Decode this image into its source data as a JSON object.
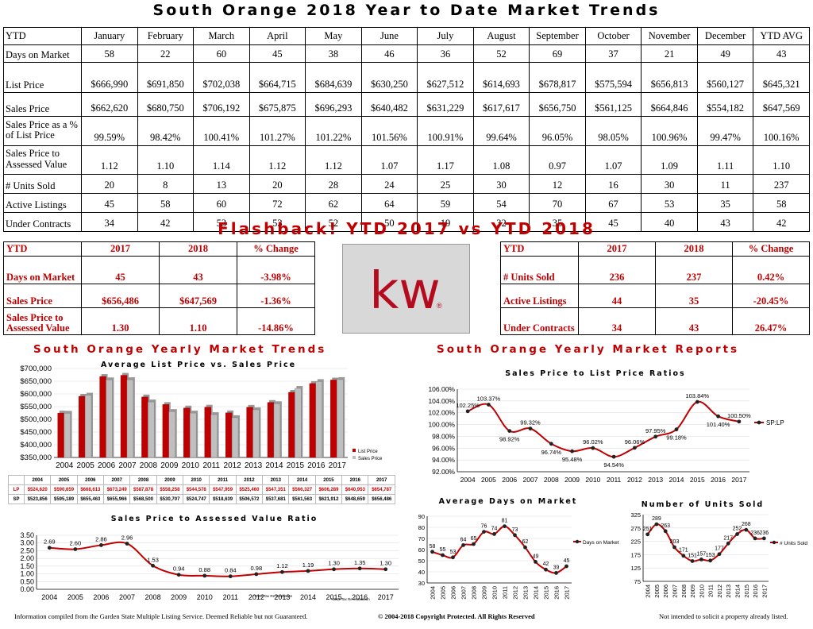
{
  "title": "South Orange 2018 Year to Date Market Trends",
  "main_table": {
    "headers": [
      "YTD",
      "January",
      "February",
      "March",
      "April",
      "May",
      "June",
      "July",
      "August",
      "September",
      "October",
      "November",
      "December",
      "YTD AVG"
    ],
    "rows": [
      {
        "label": "Days on Market",
        "values": [
          "58",
          "22",
          "60",
          "45",
          "38",
          "46",
          "36",
          "52",
          "69",
          "37",
          "21",
          "49",
          "43"
        ]
      },
      {
        "label": "List Price",
        "values": [
          "$666,990",
          "$691,850",
          "$702,038",
          "$664,715",
          "$684,639",
          "$630,250",
          "$627,512",
          "$614,693",
          "$678,817",
          "$575,594",
          "$656,813",
          "$560,127",
          "$645,321"
        ]
      },
      {
        "label": "Sales Price",
        "values": [
          "$662,620",
          "$680,750",
          "$706,192",
          "$675,875",
          "$696,293",
          "$640,482",
          "$631,229",
          "$617,617",
          "$656,750",
          "$561,125",
          "$664,846",
          "$554,182",
          "$647,569"
        ]
      },
      {
        "label": "Sales Price as a % of List Price",
        "values": [
          "99.59%",
          "98.42%",
          "100.41%",
          "101.27%",
          "101.22%",
          "101.56%",
          "100.91%",
          "99.64%",
          "96.05%",
          "98.05%",
          "100.96%",
          "99.47%",
          "100.16%"
        ]
      },
      {
        "label": "Sales Price to Assessed Value",
        "values": [
          "1.12",
          "1.10",
          "1.14",
          "1.12",
          "1.12",
          "1.07",
          "1.17",
          "1.08",
          "0.97",
          "1.07",
          "1.09",
          "1.11",
          "1.10"
        ]
      },
      {
        "label": "# Units Sold",
        "values": [
          "20",
          "8",
          "13",
          "20",
          "28",
          "24",
          "25",
          "30",
          "12",
          "16",
          "30",
          "11",
          "237"
        ]
      },
      {
        "label": "Active Listings",
        "values": [
          "45",
          "58",
          "60",
          "72",
          "62",
          "64",
          "59",
          "54",
          "70",
          "67",
          "53",
          "35",
          "58"
        ]
      },
      {
        "label": "Under Contracts",
        "values": [
          "34",
          "42",
          "53",
          "53",
          "52",
          "50",
          "19",
          "32",
          "35",
          "45",
          "40",
          "43",
          "42"
        ]
      }
    ]
  },
  "flashback": {
    "title": "Flashback!  YTD 2017 vs YTD 2018",
    "left": {
      "headers": [
        "YTD",
        "2017",
        "2018",
        "% Change"
      ],
      "rows": [
        [
          "Days on Market",
          "45",
          "43",
          "-3.98%"
        ],
        [
          "Sales Price",
          "$656,486",
          "$647,569",
          "-1.36%"
        ],
        [
          "Sales Price to Assessed Value",
          "1.30",
          "1.10",
          "-14.86%"
        ]
      ]
    },
    "right": {
      "headers": [
        "YTD",
        "2017",
        "2018",
        "% Change"
      ],
      "rows": [
        [
          "# Units Sold",
          "236",
          "237",
          "0.42%"
        ],
        [
          "Active Listings",
          "44",
          "35",
          "-20.45%"
        ],
        [
          "Under Contracts",
          "34",
          "43",
          "26.47%"
        ]
      ]
    }
  },
  "logo": {
    "text": "kw",
    "mark": "®",
    "color": "#b40c1e"
  },
  "left_section_title": "South Orange Yearly Market Trends",
  "right_section_title": "South Orange Yearly Market Reports",
  "colors": {
    "red": "#c00000",
    "gray": "#bfbfbf",
    "line": "#c00000",
    "point": "#222222"
  },
  "chart_data": [
    {
      "type": "bar",
      "title": "Average List Price vs. Sales Price",
      "categories": [
        "2004",
        "2005",
        "2006",
        "2007",
        "2008",
        "2009",
        "2010",
        "2011",
        "2012",
        "2013",
        "2014",
        "2015",
        "2016",
        "2017"
      ],
      "category_labels": [
        "2004",
        "2005",
        "2006",
        "2007",
        "2008",
        "2009",
        "2010",
        "2011",
        "2012",
        "2013",
        "2014",
        "2015",
        "2016",
        "2017"
      ],
      "series": [
        {
          "name": "List Price",
          "short": "LP",
          "values": [
            524620,
            590659,
            668613,
            673249,
            587878,
            558258,
            544578,
            547959,
            525460,
            547351,
            566327,
            606289,
            640953,
            654787
          ],
          "labels": [
            "$524,620",
            "$590,659",
            "$668,613",
            "$673,249",
            "$587,878",
            "$558,258",
            "$544,578",
            "$547,959",
            "$525,460",
            "$547,351",
            "$566,327",
            "$606,289",
            "$640,953",
            "$654,787"
          ]
        },
        {
          "name": "Sales Price",
          "short": "SP",
          "values": [
            523856,
            595189,
            655463,
            655966,
            568500,
            530707,
            524747,
            518639,
            506572,
            537681,
            561563,
            621912,
            648659,
            656486
          ],
          "labels": [
            "$523,856",
            "$595,189",
            "$655,463",
            "$655,966",
            "$568,500",
            "$530,707",
            "$524,747",
            "$518,639",
            "$506,572",
            "$537,681",
            "$561,563",
            "$621,912",
            "$648,659",
            "$656,486"
          ]
        }
      ],
      "ylim": [
        350000,
        700000
      ],
      "yticks": [
        350000,
        400000,
        450000,
        500000,
        550000,
        600000,
        650000,
        700000
      ],
      "ytick_labels": [
        "$350,000",
        "$400,000",
        "$450,000",
        "$500,000",
        "$550,000",
        "$600,000",
        "$650,000",
        "$700,000"
      ],
      "legend": "right"
    },
    {
      "type": "line",
      "title": "Sales Price to Assessed Value Ratio",
      "x": [
        "2004",
        "2005",
        "2006",
        "2007",
        "2008",
        "2009",
        "2010",
        "2011",
        "2012",
        "2013",
        "2014",
        "2015",
        "2016",
        "2017"
      ],
      "series": [
        {
          "values": [
            2.69,
            2.6,
            2.86,
            2.96,
            1.53,
            0.94,
            0.88,
            0.84,
            0.98,
            1.12,
            1.19,
            1.3,
            1.35,
            1.3
          ],
          "labels": [
            "2.69",
            "2.60",
            "2.86",
            "2.96",
            "1.53",
            "0.94",
            "0.88",
            "0.84",
            "0.98",
            "1.12",
            "1.19",
            "1.30",
            "1.35",
            "1.30"
          ]
        }
      ],
      "ylim": [
        0,
        3.5
      ],
      "yticks": [
        0,
        0.5,
        1,
        1.5,
        2,
        2.5,
        3,
        3.5
      ],
      "ytick_labels": [
        "0.00",
        "0.50",
        "1.00",
        "1.50",
        "2.00",
        "2.50",
        "3.00",
        "3.50"
      ],
      "annotations": [
        "*2008 Tax Re-evaluation",
        "*2012 Tax Re-evaluation"
      ]
    },
    {
      "type": "line",
      "title": "Sales Price to List Price Ratios",
      "x": [
        "2004",
        "2005",
        "2006",
        "2007",
        "2008",
        "2009",
        "2010",
        "2011",
        "2012",
        "2013",
        "2014",
        "2015",
        "2016",
        "2017"
      ],
      "series": [
        {
          "name": "SP:LP",
          "values": [
            102.25,
            103.37,
            98.92,
            99.32,
            96.74,
            95.48,
            96.02,
            94.54,
            96.06,
            97.95,
            99.18,
            103.84,
            101.4,
            100.5
          ],
          "labels": [
            "102.25%",
            "103.37%",
            "98.92%",
            "99.32%",
            "96.74%",
            "95.48%",
            "96.02%",
            "94.54%",
            "96.06%",
            "97.95%",
            "99.18%",
            "103.84%",
            "101.40%",
            "100.50%"
          ]
        }
      ],
      "ylim": [
        92,
        106
      ],
      "yticks": [
        92,
        94,
        96,
        98,
        100,
        102,
        104,
        106
      ],
      "ytick_labels": [
        "92.00%",
        "94.00%",
        "96.00%",
        "98.00%",
        "100.00%",
        "102.00%",
        "104.00%",
        "106.00%"
      ],
      "legend": "right"
    },
    {
      "type": "line",
      "title": "Average Days on Market",
      "x": [
        "2004",
        "2005",
        "2006",
        "2007",
        "2008",
        "2009",
        "2010",
        "2011",
        "2012",
        "2013",
        "2014",
        "2015",
        "2016",
        "2017"
      ],
      "series": [
        {
          "name": "Days on Market",
          "values": [
            58,
            55,
            53,
            64,
            65,
            76,
            74,
            81,
            73,
            62,
            49,
            42,
            39,
            45
          ],
          "labels": [
            "58",
            "55",
            "53",
            "64",
            "65",
            "76",
            "74",
            "81",
            "73",
            "62",
            "49",
            "42",
            "39",
            "45"
          ]
        }
      ],
      "ylim": [
        30,
        90
      ],
      "yticks": [
        30,
        40,
        50,
        60,
        70,
        80,
        90
      ],
      "ytick_labels": [
        "30",
        "40",
        "50",
        "60",
        "70",
        "80",
        "90"
      ],
      "legend": "right"
    },
    {
      "type": "line",
      "title": "Number of Units Sold",
      "x": [
        "2004",
        "2005",
        "2006",
        "2007",
        "2008",
        "2009",
        "2010",
        "2011",
        "2012",
        "2013",
        "2014",
        "2015",
        "2016",
        "2017"
      ],
      "series": [
        {
          "name": "# Units Sold",
          "values": [
            251,
            289,
            263,
            203,
            171,
            151,
            157,
            153,
            177,
            217,
            252,
            268,
            236,
            236
          ],
          "labels": [
            "251",
            "289",
            "263",
            "203",
            "171",
            "151",
            "157",
            "153",
            "177",
            "217",
            "252",
            "268",
            "236",
            "236"
          ]
        }
      ],
      "ylim": [
        75,
        325
      ],
      "yticks": [
        75,
        125,
        175,
        225,
        275,
        325
      ],
      "ytick_labels": [
        "75",
        "125",
        "175",
        "225",
        "275",
        "325"
      ],
      "legend": "right"
    }
  ],
  "footer": {
    "left": "Information compiled from the Garden State Multiple Listing Service.  Deemed Reliable but not Guaranteed.",
    "center": "© 2004-2018 Copyright Protected.  All Rights Reserved",
    "right": "Not intended to solicit a property already listed."
  }
}
